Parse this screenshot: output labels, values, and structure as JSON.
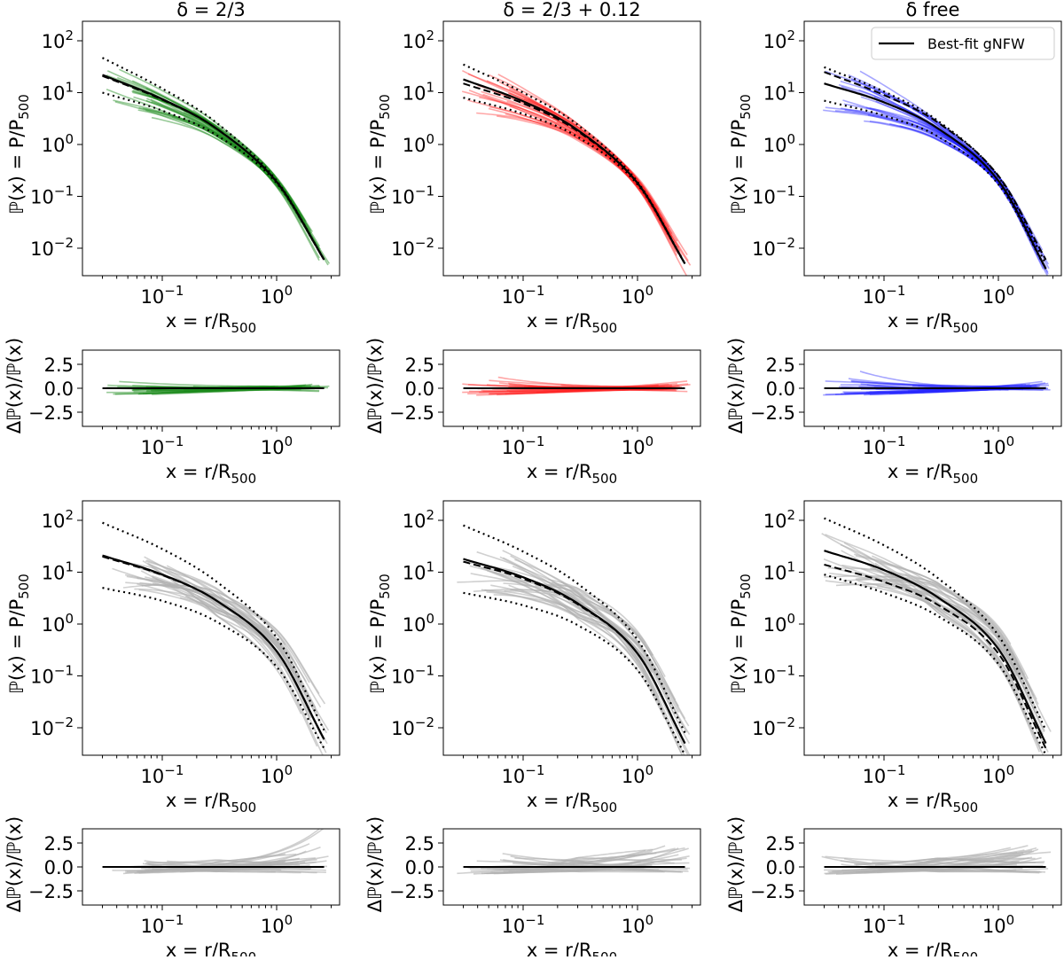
{
  "chart_data": {
    "type": "line",
    "figure_grid": "4 rows x 3 columns (profile panels with residual panels beneath)",
    "column_titles": [
      "δ = 2/3",
      "δ = 2/3 + 0.12",
      "δ free"
    ],
    "legend": {
      "label": "Best-fit gNFW",
      "placement": "top-right of top-right panel"
    },
    "main_axes": {
      "xlabel": {
        "text": "x = r/R",
        "sub": "500"
      },
      "ylabel": {
        "text": "ℙ(x) = P/P",
        "sub": "500"
      },
      "xscale": "log",
      "yscale": "log",
      "xlim": [
        0.02,
        3.5
      ],
      "ylim": [
        0.003,
        240
      ],
      "xticks": [
        {
          "base": "10",
          "exp": "−1",
          "value": 0.1
        },
        {
          "base": "10",
          "exp": "0",
          "value": 1
        }
      ],
      "yticks": [
        {
          "base": "10",
          "exp": "2",
          "value": 100
        },
        {
          "base": "10",
          "exp": "1",
          "value": 10
        },
        {
          "base": "10",
          "exp": "0",
          "value": 1
        },
        {
          "base": "10",
          "exp": "−1",
          "value": 0.1
        },
        {
          "base": "10",
          "exp": "−2",
          "value": 0.01
        }
      ]
    },
    "residual_axes": {
      "xlabel": {
        "text": "x = r/R",
        "sub": "500"
      },
      "ylabel": "Δℙ(x)/ℙ(x)",
      "xscale": "log",
      "yscale": "linear",
      "ylim": [
        -4,
        4
      ],
      "yticks": [
        {
          "label": "2.5",
          "value": 2.5
        },
        {
          "label": "0.0",
          "value": 0
        },
        {
          "label": "−2.5",
          "value": -2.5
        }
      ]
    },
    "curve_x": [
      0.03,
      0.1,
      0.3,
      1.0,
      2.6
    ],
    "panels": [
      {
        "row": 0,
        "col": 0,
        "profile_color": "#1a8a1a",
        "profile_alpha": 0.45,
        "best_fit": [
          22,
          7.5,
          2.0,
          0.19,
          0.006
        ],
        "dashed": [
          21,
          7.3,
          2.0,
          0.19,
          0.006
        ],
        "dotted_upper": [
          47,
          12,
          2.6,
          0.2,
          0.006
        ],
        "dotted_lower": [
          10,
          4.5,
          1.5,
          0.18,
          0.006
        ],
        "profiles": {
          "count": 32,
          "seed": 11,
          "inner_spread": 0.45,
          "pivot": 0.8,
          "outer_spread": 0.15
        }
      },
      {
        "row": 0,
        "col": 1,
        "profile_color": "#ff2020",
        "profile_alpha": 0.4,
        "best_fit": [
          18,
          6.8,
          1.9,
          0.18,
          0.005
        ],
        "dashed": [
          15,
          6.2,
          1.8,
          0.18,
          0.005
        ],
        "dotted_upper": [
          35,
          10,
          2.4,
          0.19,
          0.005
        ],
        "dotted_lower": [
          8,
          3.9,
          1.4,
          0.17,
          0.005
        ],
        "profiles": {
          "count": 32,
          "seed": 23,
          "inner_spread": 0.45,
          "pivot": 0.8,
          "outer_spread": 0.15
        }
      },
      {
        "row": 0,
        "col": 2,
        "profile_color": "#2020ff",
        "profile_alpha": 0.4,
        "best_fit": [
          15,
          6.5,
          2.0,
          0.2,
          0.004
        ],
        "dashed": [
          25,
          9,
          2.6,
          0.25,
          0.006
        ],
        "dotted_upper": [
          31,
          10.5,
          2.8,
          0.24,
          0.005
        ],
        "dotted_lower": [
          7,
          3.6,
          1.4,
          0.17,
          0.004
        ],
        "profiles": {
          "count": 32,
          "seed": 37,
          "inner_spread": 0.45,
          "pivot": 0.8,
          "outer_spread": 0.15
        }
      },
      {
        "row": 2,
        "col": 0,
        "profile_color": "#b0b0b0",
        "profile_alpha": 0.6,
        "best_fit": [
          21,
          9,
          2.8,
          0.3,
          0.006
        ],
        "dashed": [
          20,
          8.8,
          2.8,
          0.3,
          0.006
        ],
        "dotted_upper": [
          90,
          28,
          6.5,
          0.55,
          0.009
        ],
        "dotted_lower": [
          5,
          2.8,
          1.1,
          0.15,
          0.004
        ],
        "profiles": {
          "count": 34,
          "seed": 51,
          "inner_spread": 0.55,
          "pivot": 0.3,
          "outer_spread": 0.5
        }
      },
      {
        "row": 2,
        "col": 1,
        "profile_color": "#b0b0b0",
        "profile_alpha": 0.6,
        "best_fit": [
          18,
          8,
          2.5,
          0.27,
          0.005
        ],
        "dashed": [
          16,
          7.5,
          2.4,
          0.27,
          0.005
        ],
        "dotted_upper": [
          80,
          25,
          6,
          0.5,
          0.008
        ],
        "dotted_lower": [
          4,
          2.3,
          0.95,
          0.13,
          0.003
        ],
        "profiles": {
          "count": 34,
          "seed": 67,
          "inner_spread": 0.55,
          "pivot": 0.3,
          "outer_spread": 0.5
        }
      },
      {
        "row": 2,
        "col": 2,
        "profile_color": "#b0b0b0",
        "profile_alpha": 0.6,
        "best_fit": [
          26,
          11,
          3.2,
          0.33,
          0.005
        ],
        "dashed": [
          14,
          6.5,
          2.3,
          0.27,
          0.004
        ],
        "dotted_upper": [
          110,
          33,
          7.5,
          0.6,
          0.009
        ],
        "dotted_lower": [
          9,
          4,
          1.4,
          0.17,
          0.003
        ],
        "profiles": {
          "count": 34,
          "seed": 79,
          "inner_spread": 0.55,
          "pivot": 0.3,
          "outer_spread": 0.5
        }
      }
    ]
  }
}
